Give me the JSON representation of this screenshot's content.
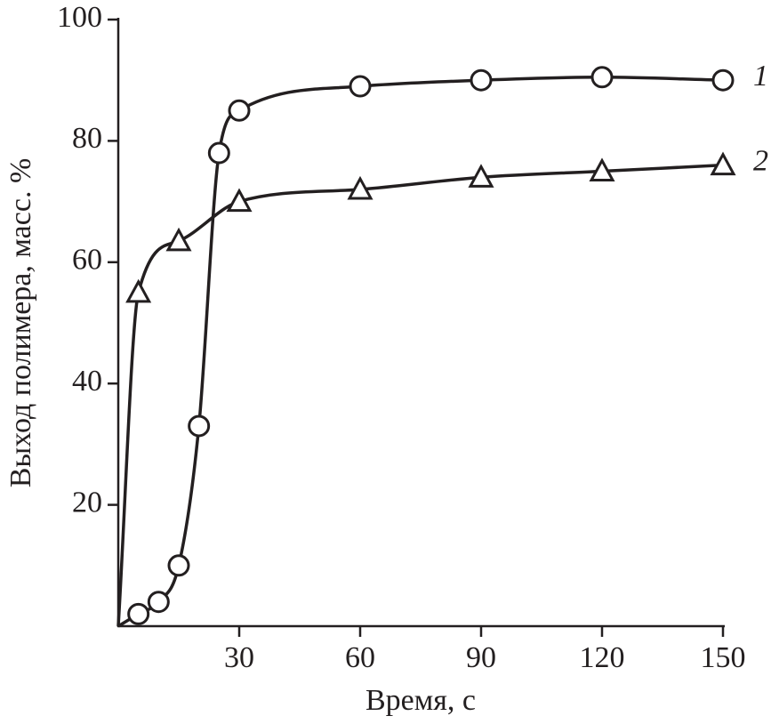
{
  "chart_data": {
    "type": "line",
    "x_label": "Время, с",
    "y_label": "Выход полимера, масс. %",
    "series": [
      {
        "name": "1",
        "marker": "circle",
        "color": "#231f20",
        "x": [
          0,
          5,
          10,
          15,
          20,
          25,
          30,
          60,
          90,
          120,
          150
        ],
        "values": [
          0,
          2,
          4,
          10,
          33,
          78,
          85,
          89,
          90,
          90.5,
          90
        ]
      },
      {
        "name": "2",
        "marker": "triangle",
        "color": "#231f20",
        "x": [
          0,
          5,
          15,
          30,
          60,
          90,
          120,
          150
        ],
        "values": [
          0,
          55,
          63.5,
          70,
          72,
          74,
          75,
          76
        ]
      }
    ],
    "xlim": [
      0,
      150
    ],
    "ylim": [
      0,
      100
    ],
    "xticks": [
      30,
      60,
      90,
      120,
      150
    ],
    "yticks": [
      20,
      40,
      60,
      80,
      100
    ]
  }
}
